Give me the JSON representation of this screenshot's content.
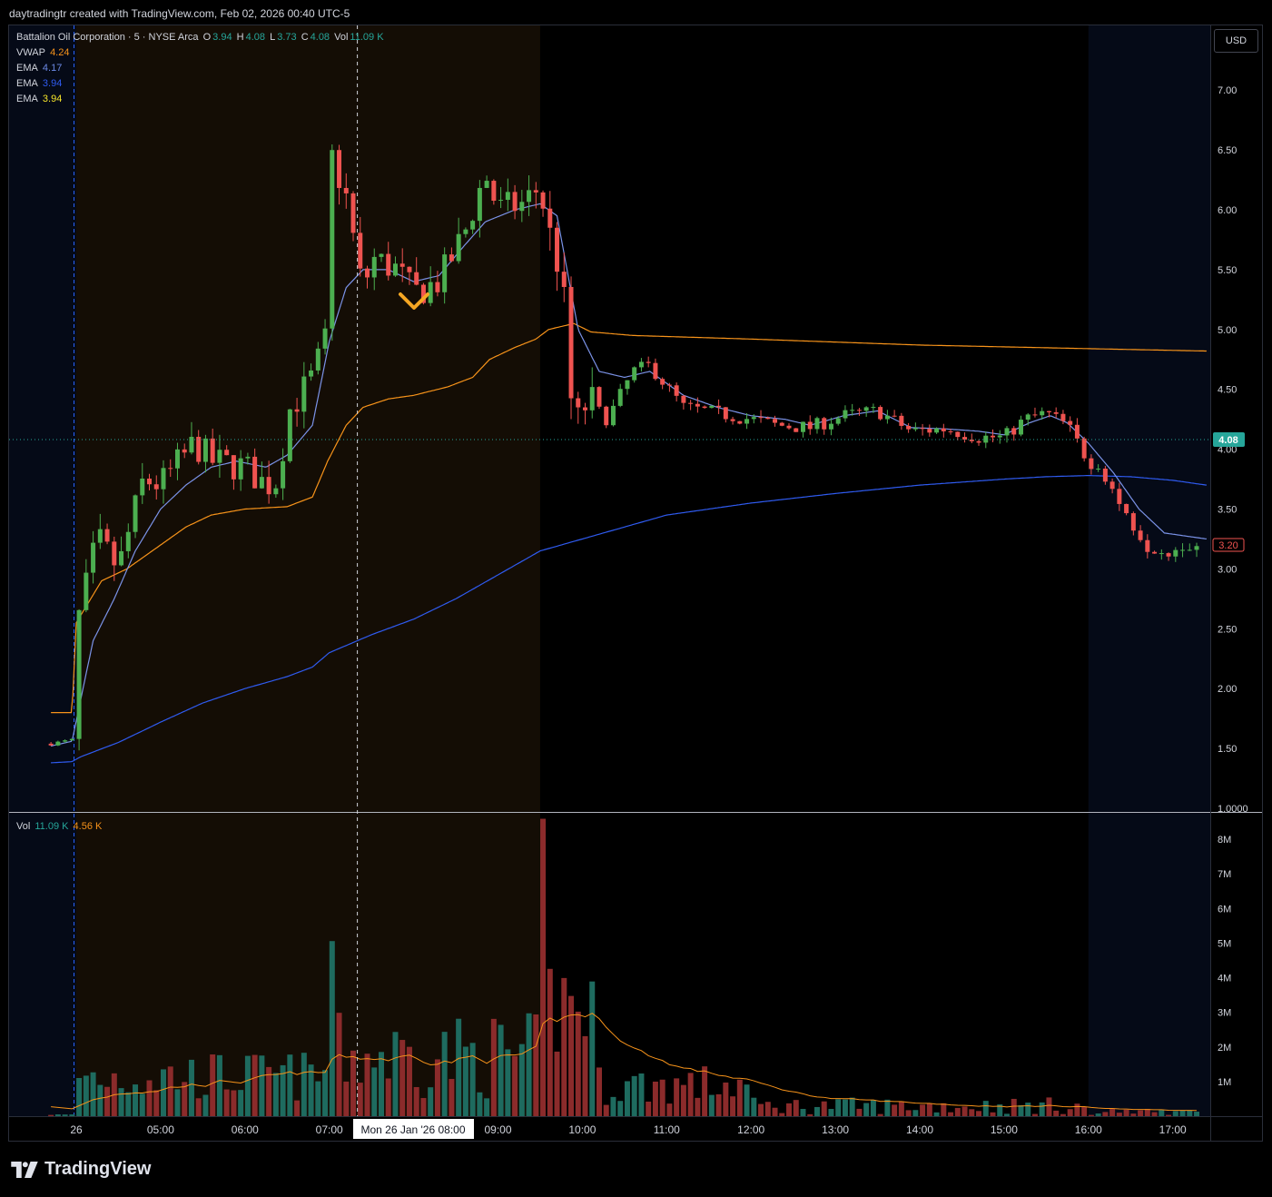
{
  "header": {
    "credit": "daytradingtr created with TradingView.com, Feb 02, 2026 00:40 UTC-5"
  },
  "symbol": {
    "name": "Battalion Oil Corporation · 5 · NYSE Arca",
    "o_label": "O",
    "open": "3.94",
    "h_label": "H",
    "high": "4.08",
    "l_label": "L",
    "low": "3.73",
    "c_label": "C",
    "close": "4.08",
    "vol_label": "Vol",
    "vol": "11.09 K"
  },
  "indicators": [
    {
      "label": "VWAP",
      "value": "4.24",
      "color": "#f7931a"
    },
    {
      "label": "EMA",
      "value": "4.17",
      "color": "#6c8ae6"
    },
    {
      "label": "EMA",
      "value": "3.94",
      "color": "#2f5bf0"
    },
    {
      "label": "EMA",
      "value": "3.94",
      "color": "#f5e52a"
    }
  ],
  "volume_legend": {
    "label": "Vol",
    "value": "11.09 K",
    "ma_value": "4.56 K",
    "value_color": "#26a69a",
    "ma_color": "#f7931a"
  },
  "currency_button": "USD",
  "brand": "TradingView",
  "colors": {
    "up": "#26a69a",
    "up_candle": "#4caf50",
    "down": "#ef5350",
    "vwap": "#f7931a",
    "ema_fast": "#7b93e8",
    "ema_slow": "#2f5bf0",
    "premarket_bg": "#140d05",
    "afterhours_bg": "#050a17",
    "grid": "#1a1d24"
  },
  "chart_data": {
    "type": "candlestick",
    "price_axis": {
      "min": 1.0,
      "max": 7.3,
      "ticks": [
        "7.00",
        "6.50",
        "6.00",
        "5.50",
        "5.00",
        "4.50",
        "4.00",
        "3.50",
        "3.00",
        "2.50",
        "2.00",
        "1.50",
        "1.0000"
      ]
    },
    "volume_axis": {
      "min": 0,
      "max": 8500000,
      "ticks": [
        "8M",
        "7M",
        "6M",
        "5M",
        "4M",
        "3M",
        "2M",
        "1M"
      ]
    },
    "time_axis": {
      "ticks": [
        "26",
        "05:00",
        "06:00",
        "07:00",
        "08:00",
        "09:00",
        "10:00",
        "11:00",
        "12:00",
        "13:00",
        "14:00",
        "15:00",
        "16:00",
        "17:00"
      ]
    },
    "crosshair_label": "Mon 26 Jan '26   08:00",
    "last_price": "4.08",
    "close_label": "3.20",
    "series": [
      {
        "name": "Price",
        "anchors": [
          [
            3.7,
            1.54
          ],
          [
            3.95,
            1.57
          ],
          [
            4.0,
            2.5
          ],
          [
            4.25,
            3.25
          ],
          [
            4.5,
            3.0
          ],
          [
            4.8,
            3.75
          ],
          [
            5.0,
            3.7
          ],
          [
            5.4,
            4.05
          ],
          [
            5.6,
            3.9
          ],
          [
            6.0,
            3.85
          ],
          [
            6.25,
            3.7
          ],
          [
            6.4,
            3.75
          ],
          [
            6.5,
            4.3
          ],
          [
            6.8,
            4.6
          ],
          [
            6.95,
            4.9
          ],
          [
            7.0,
            6.5
          ],
          [
            7.2,
            6.1
          ],
          [
            7.4,
            5.3
          ],
          [
            7.5,
            5.6
          ],
          [
            7.8,
            5.5
          ],
          [
            8.0,
            5.3
          ],
          [
            8.3,
            5.4
          ],
          [
            8.6,
            5.8
          ],
          [
            8.85,
            6.3
          ],
          [
            9.0,
            6.0
          ],
          [
            9.3,
            6.05
          ],
          [
            9.5,
            6.2
          ],
          [
            9.6,
            5.8
          ],
          [
            9.75,
            5.5
          ],
          [
            9.9,
            4.1
          ],
          [
            10.05,
            4.4
          ],
          [
            10.3,
            4.25
          ],
          [
            10.6,
            4.65
          ],
          [
            10.8,
            4.7
          ],
          [
            11.2,
            4.35
          ],
          [
            11.6,
            4.3
          ],
          [
            12.0,
            4.25
          ],
          [
            12.3,
            4.2
          ],
          [
            12.7,
            4.18
          ],
          [
            13.1,
            4.28
          ],
          [
            13.5,
            4.32
          ],
          [
            13.9,
            4.15
          ],
          [
            14.3,
            4.17
          ],
          [
            14.7,
            4.1
          ],
          [
            15.0,
            4.1
          ],
          [
            15.25,
            4.25
          ],
          [
            15.5,
            4.3
          ],
          [
            15.75,
            4.2
          ],
          [
            16.0,
            3.9
          ],
          [
            16.15,
            3.85
          ],
          [
            16.4,
            3.5
          ],
          [
            16.7,
            3.2
          ],
          [
            16.9,
            3.15
          ],
          [
            17.1,
            3.2
          ],
          [
            17.3,
            3.2
          ]
        ]
      },
      {
        "name": "VWAP",
        "anchors": [
          [
            3.7,
            1.8
          ],
          [
            3.95,
            1.8
          ],
          [
            4.0,
            2.55
          ],
          [
            4.3,
            2.9
          ],
          [
            4.6,
            3.0
          ],
          [
            5.0,
            3.2
          ],
          [
            5.3,
            3.35
          ],
          [
            5.6,
            3.45
          ],
          [
            6.0,
            3.5
          ],
          [
            6.5,
            3.52
          ],
          [
            6.8,
            3.6
          ],
          [
            6.98,
            3.9
          ],
          [
            7.2,
            4.2
          ],
          [
            7.4,
            4.35
          ],
          [
            7.7,
            4.42
          ],
          [
            8.0,
            4.45
          ],
          [
            8.4,
            4.52
          ],
          [
            8.7,
            4.6
          ],
          [
            8.9,
            4.75
          ],
          [
            9.2,
            4.85
          ],
          [
            9.45,
            4.92
          ],
          [
            9.6,
            5.0
          ],
          [
            9.9,
            5.05
          ],
          [
            10.1,
            4.98
          ],
          [
            10.6,
            4.95
          ],
          [
            12.0,
            4.92
          ],
          [
            14.0,
            4.87
          ],
          [
            16.0,
            4.84
          ],
          [
            17.4,
            4.82
          ]
        ]
      },
      {
        "name": "EMA",
        "anchors": [
          [
            3.7,
            1.38
          ],
          [
            3.95,
            1.39
          ],
          [
            4.05,
            1.43
          ],
          [
            4.5,
            1.55
          ],
          [
            5.0,
            1.72
          ],
          [
            5.5,
            1.88
          ],
          [
            6.0,
            2.0
          ],
          [
            6.5,
            2.1
          ],
          [
            6.8,
            2.18
          ],
          [
            7.0,
            2.3
          ],
          [
            7.5,
            2.45
          ],
          [
            8.0,
            2.58
          ],
          [
            8.5,
            2.75
          ],
          [
            9.0,
            2.95
          ],
          [
            9.5,
            3.15
          ],
          [
            10.0,
            3.25
          ],
          [
            10.5,
            3.35
          ],
          [
            11.0,
            3.45
          ],
          [
            12.0,
            3.55
          ],
          [
            13.0,
            3.63
          ],
          [
            14.0,
            3.7
          ],
          [
            15.0,
            3.75
          ],
          [
            15.5,
            3.77
          ],
          [
            16.0,
            3.78
          ],
          [
            16.5,
            3.77
          ],
          [
            17.0,
            3.74
          ],
          [
            17.4,
            3.7
          ]
        ]
      },
      {
        "name": "EMA",
        "anchors": [
          [
            3.7,
            1.52
          ],
          [
            3.95,
            1.56
          ],
          [
            4.05,
            1.9
          ],
          [
            4.2,
            2.4
          ],
          [
            4.45,
            2.75
          ],
          [
            4.7,
            3.15
          ],
          [
            5.0,
            3.5
          ],
          [
            5.3,
            3.7
          ],
          [
            5.6,
            3.85
          ],
          [
            5.9,
            3.9
          ],
          [
            6.25,
            3.85
          ],
          [
            6.5,
            3.95
          ],
          [
            6.8,
            4.2
          ],
          [
            7.0,
            4.9
          ],
          [
            7.2,
            5.35
          ],
          [
            7.4,
            5.5
          ],
          [
            7.7,
            5.5
          ],
          [
            8.0,
            5.4
          ],
          [
            8.3,
            5.45
          ],
          [
            8.6,
            5.7
          ],
          [
            8.85,
            5.9
          ],
          [
            9.2,
            6.0
          ],
          [
            9.5,
            6.05
          ],
          [
            9.7,
            5.95
          ],
          [
            9.95,
            5.0
          ],
          [
            10.2,
            4.65
          ],
          [
            10.5,
            4.6
          ],
          [
            10.8,
            4.65
          ],
          [
            11.2,
            4.45
          ],
          [
            11.6,
            4.35
          ],
          [
            12.0,
            4.28
          ],
          [
            12.4,
            4.25
          ],
          [
            12.7,
            4.2
          ],
          [
            13.1,
            4.28
          ],
          [
            13.5,
            4.32
          ],
          [
            13.9,
            4.18
          ],
          [
            14.3,
            4.17
          ],
          [
            14.7,
            4.15
          ],
          [
            15.0,
            4.12
          ],
          [
            15.3,
            4.22
          ],
          [
            15.55,
            4.28
          ],
          [
            15.75,
            4.22
          ],
          [
            16.0,
            4.05
          ],
          [
            16.3,
            3.8
          ],
          [
            16.6,
            3.5
          ],
          [
            16.9,
            3.3
          ],
          [
            17.2,
            3.27
          ],
          [
            17.4,
            3.25
          ]
        ]
      }
    ]
  }
}
